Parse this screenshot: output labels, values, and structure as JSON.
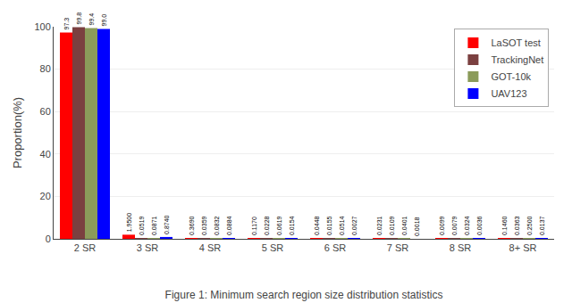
{
  "chart_data": {
    "type": "bar",
    "title": "Figure 1: Minimum search region size distribution statistics",
    "ylabel": "Proportion(%)",
    "categories": [
      "2 SR",
      "3 SR",
      "4 SR",
      "5 SR",
      "6 SR",
      "7 SR",
      "8 SR",
      "8+ SR"
    ],
    "series": [
      {
        "name": "LaSOT test",
        "color": "#FF0000",
        "values": [
          97.3,
          1.95,
          0.369,
          0.117,
          0.0448,
          0.0231,
          0.0099,
          0.146
        ],
        "value_labels": [
          "97.3",
          "1.9500",
          "0.3690",
          "0.1170",
          "0.0448",
          "0.0231",
          "0.0099",
          "0.1460"
        ]
      },
      {
        "name": "TrackingNet",
        "color": "#7B4040",
        "values": [
          99.8,
          0.0519,
          0.0359,
          0.0228,
          0.0155,
          0.0109,
          0.0079,
          0.0363
        ],
        "value_labels": [
          "99.8",
          "0.0519",
          "0.0359",
          "0.0228",
          "0.0155",
          "0.0109",
          "0.0079",
          "0.0363"
        ]
      },
      {
        "name": "GOT-10k",
        "color": "#8B9B5A",
        "values": [
          99.4,
          0.0871,
          0.0832,
          0.0619,
          0.0514,
          0.0401,
          0.0324,
          0.25
        ],
        "value_labels": [
          "99.4",
          "0.0871",
          "0.0832",
          "0.0619",
          "0.0514",
          "0.0401",
          "0.0324",
          "0.2500"
        ]
      },
      {
        "name": "UAV123",
        "color": "#0000FF",
        "values": [
          99.0,
          0.874,
          0.0884,
          0.0154,
          0.0027,
          0.0018,
          0.0036,
          0.0137
        ],
        "value_labels": [
          "99.0",
          "0.8740",
          "0.0884",
          "0.0154",
          "0.0027",
          "0.0018",
          "0.0036",
          "0.0137"
        ]
      }
    ],
    "ylim": [
      0,
      100
    ],
    "yticks": [
      0,
      20,
      40,
      60,
      80,
      100
    ],
    "grid": true,
    "legend": "upper right",
    "data_labels": true
  }
}
